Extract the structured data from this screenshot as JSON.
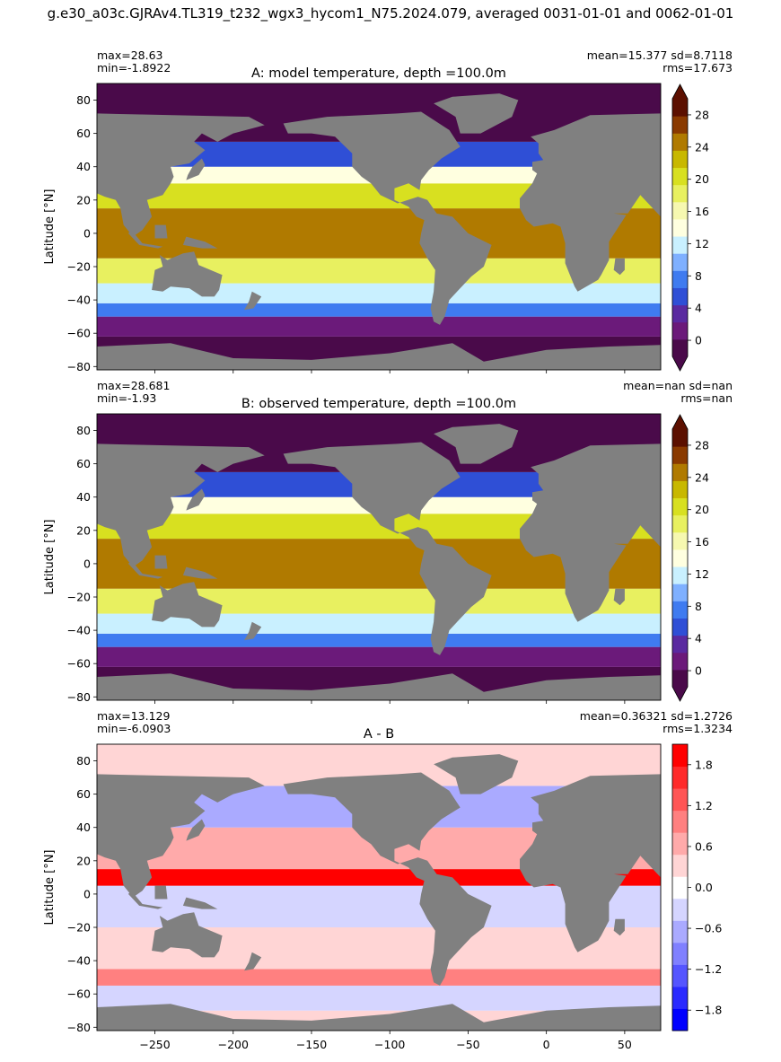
{
  "figure": {
    "suptitle": "g.e30_a03c.GJRAv4.TL319_t232_wgx3_hycom1_N75.2024.079, averaged 0031-01-01 and 0062-01-01",
    "land_color": "#808080"
  },
  "chart_data": [
    {
      "type": "heatmap",
      "panel_id": "A",
      "title": "A: model temperature, depth =100.0m",
      "stats_left": [
        "max=28.63",
        "min=-1.8922"
      ],
      "stats_right": [
        "mean=15.377  sd=8.7118",
        "rms=17.673"
      ],
      "xlabel": "",
      "ylabel": "Latitude [°N]",
      "xlim": [
        -287,
        73
      ],
      "ylim": [
        -82,
        90
      ],
      "yticks": [
        -80,
        -60,
        -40,
        -20,
        0,
        20,
        40,
        60,
        80
      ],
      "xticks": [
        -250,
        -200,
        -150,
        -100,
        -50,
        0,
        50
      ],
      "show_xticklabels": false,
      "colorbar": {
        "range": [
          -2,
          30
        ],
        "ticks": [
          0,
          4,
          8,
          12,
          16,
          20,
          24,
          28
        ],
        "extend": "both",
        "colormap": "temperature",
        "colors": [
          "#4a0a4a",
          "#6b1a7a",
          "#5a2aa0",
          "#2f4fd6",
          "#3f7bf0",
          "#7fb0ff",
          "#c9f0ff",
          "#ffffe0",
          "#f6f8b0",
          "#e8f060",
          "#d8e020",
          "#c8b800",
          "#b07a00",
          "#8a3a00",
          "#5c1000"
        ]
      },
      "field": [
        {
          "lat": [
            -82,
            -62
          ],
          "value": -1.5
        },
        {
          "lat": [
            -62,
            -50
          ],
          "value": 2
        },
        {
          "lat": [
            -50,
            -42
          ],
          "value": 7
        },
        {
          "lat": [
            -42,
            -30
          ],
          "value": 12
        },
        {
          "lat": [
            -30,
            -15
          ],
          "value": 18
        },
        {
          "lat": [
            -15,
            15
          ],
          "value": 24
        },
        {
          "lat": [
            15,
            30
          ],
          "value": 20
        },
        {
          "lat": [
            30,
            40
          ],
          "value": 14
        },
        {
          "lat": [
            40,
            55
          ],
          "value": 5
        },
        {
          "lat": [
            55,
            90
          ],
          "value": -1
        }
      ]
    },
    {
      "type": "heatmap",
      "panel_id": "B",
      "title": "B: observed temperature, depth =100.0m",
      "stats_left": [
        "max=28.681",
        "min=-1.93"
      ],
      "stats_right": [
        "mean=nan sd=nan",
        "rms=nan"
      ],
      "xlabel": "",
      "ylabel": "Latitude [°N]",
      "xlim": [
        -287,
        73
      ],
      "ylim": [
        -82,
        90
      ],
      "yticks": [
        -80,
        -60,
        -40,
        -20,
        0,
        20,
        40,
        60,
        80
      ],
      "xticks": [
        -250,
        -200,
        -150,
        -100,
        -50,
        0,
        50
      ],
      "show_xticklabels": false,
      "colorbar": {
        "range": [
          -2,
          30
        ],
        "ticks": [
          0,
          4,
          8,
          12,
          16,
          20,
          24,
          28
        ],
        "extend": "both",
        "colormap": "temperature",
        "colors": [
          "#4a0a4a",
          "#6b1a7a",
          "#5a2aa0",
          "#2f4fd6",
          "#3f7bf0",
          "#7fb0ff",
          "#c9f0ff",
          "#ffffe0",
          "#f6f8b0",
          "#e8f060",
          "#d8e020",
          "#c8b800",
          "#b07a00",
          "#8a3a00",
          "#5c1000"
        ]
      },
      "field": [
        {
          "lat": [
            -82,
            -62
          ],
          "value": -1.5
        },
        {
          "lat": [
            -62,
            -50
          ],
          "value": 2
        },
        {
          "lat": [
            -50,
            -42
          ],
          "value": 7
        },
        {
          "lat": [
            -42,
            -30
          ],
          "value": 12
        },
        {
          "lat": [
            -30,
            -15
          ],
          "value": 18
        },
        {
          "lat": [
            -15,
            15
          ],
          "value": 25
        },
        {
          "lat": [
            15,
            30
          ],
          "value": 20
        },
        {
          "lat": [
            30,
            40
          ],
          "value": 14
        },
        {
          "lat": [
            40,
            55
          ],
          "value": 5
        },
        {
          "lat": [
            55,
            90
          ],
          "value": -1
        }
      ]
    },
    {
      "type": "heatmap",
      "panel_id": "A-B",
      "title": "A - B",
      "stats_left": [
        "max=13.129",
        "min=-6.0903"
      ],
      "stats_right": [
        "mean=0.36321 sd=1.2726",
        "rms=1.3234"
      ],
      "xlabel": "",
      "ylabel": "Latitude [°N]",
      "xlim": [
        -287,
        73
      ],
      "ylim": [
        -82,
        90
      ],
      "yticks": [
        -80,
        -60,
        -40,
        -20,
        0,
        20,
        40,
        60,
        80
      ],
      "xticks": [
        -250,
        -200,
        -150,
        -100,
        -50,
        0,
        50
      ],
      "show_xticklabels": true,
      "colorbar": {
        "range": [
          -2.1,
          2.1
        ],
        "ticks": [
          -1.8,
          -1.2,
          -0.6,
          0.0,
          0.6,
          1.2,
          1.8
        ],
        "tick_labels": [
          "−1.8",
          "−1.2",
          "−0.6",
          "0.0",
          "0.6",
          "1.2",
          "1.8"
        ],
        "extend": "neither",
        "colormap": "bwr",
        "colors": [
          "#0000ff",
          "#2a2aff",
          "#5555ff",
          "#8080ff",
          "#aaaaff",
          "#d5d5ff",
          "#ffffff",
          "#ffd5d5",
          "#ffaaaa",
          "#ff8080",
          "#ff5555",
          "#ff2a2a",
          "#ff0000"
        ]
      },
      "field": [
        {
          "lat": [
            -82,
            -70
          ],
          "value": 0.2
        },
        {
          "lat": [
            -70,
            -55
          ],
          "value": -0.4
        },
        {
          "lat": [
            -55,
            -45
          ],
          "value": 1.0
        },
        {
          "lat": [
            -45,
            -20
          ],
          "value": 0.3
        },
        {
          "lat": [
            -20,
            5
          ],
          "value": -0.3
        },
        {
          "lat": [
            5,
            15
          ],
          "value": 1.8
        },
        {
          "lat": [
            15,
            40
          ],
          "value": 0.5
        },
        {
          "lat": [
            40,
            65
          ],
          "value": -0.5
        },
        {
          "lat": [
            65,
            90
          ],
          "value": 0.3
        }
      ]
    }
  ]
}
